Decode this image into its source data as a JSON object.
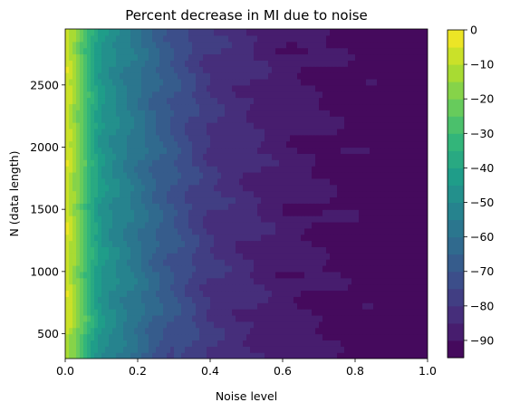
{
  "chart_data": {
    "type": "heatmap",
    "subtype": "filled-contour",
    "title": "Percent decrease in MI due to noise",
    "xlabel": "Noise level",
    "ylabel": "N (data length)",
    "xlim": [
      0.0,
      1.0
    ],
    "ylim": [
      300,
      2950
    ],
    "x_ticks": [
      0.0,
      0.2,
      0.4,
      0.6,
      0.8,
      1.0
    ],
    "x_tick_labels": [
      "0.0",
      "0.2",
      "0.4",
      "0.6",
      "0.8",
      "1.0"
    ],
    "y_ticks": [
      500,
      1000,
      1500,
      2000,
      2500
    ],
    "y_tick_labels": [
      "500",
      "1000",
      "1500",
      "2000",
      "2500"
    ],
    "colormap": "viridis",
    "colorbar": {
      "range": [
        -95,
        0
      ],
      "ticks": [
        0,
        -10,
        -20,
        -30,
        -40,
        -50,
        -60,
        -70,
        -80,
        -90
      ],
      "tick_labels": [
        "0",
        "−10",
        "−20",
        "−30",
        "−40",
        "−50",
        "−60",
        "−70",
        "−80",
        "−90"
      ],
      "levels": [
        -95,
        -90,
        -85,
        -80,
        -75,
        -70,
        -65,
        -60,
        -55,
        -50,
        -45,
        -40,
        -35,
        -30,
        -25,
        -20,
        -15,
        -10,
        -5,
        0
      ]
    },
    "profile_along_noise": {
      "noise": [
        0.0,
        0.02,
        0.05,
        0.07,
        0.1,
        0.15,
        0.2,
        0.25,
        0.3,
        0.35,
        0.4,
        0.5,
        0.55,
        0.6,
        0.7,
        0.8,
        0.9,
        1.0
      ],
      "percent_decrease": [
        -5,
        -12,
        -25,
        -35,
        -45,
        -52,
        -58,
        -65,
        -70,
        -75,
        -80,
        -84,
        -86,
        -88,
        -90,
        -92,
        -93,
        -94
      ]
    },
    "grid": false,
    "legend": "none"
  }
}
